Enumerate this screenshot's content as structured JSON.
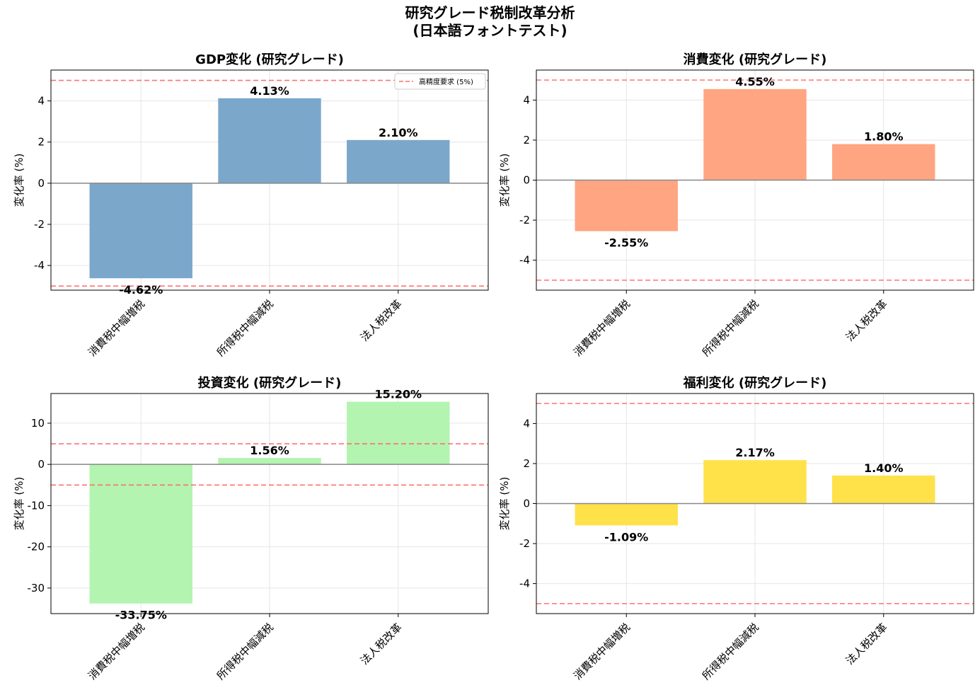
{
  "suptitle": {
    "line1": "研究グレード税制改革分析",
    "line2": "(日本語フォントテスト)"
  },
  "reference_lines": {
    "values": [
      5,
      -5
    ],
    "color": "#ff6b6b",
    "label": "高精度要求 (5%)"
  },
  "zero_line_color": "#888888",
  "chart_data": [
    {
      "type": "bar",
      "title": "GDP変化 (研究グレード)",
      "ylabel": "変化率 (%)",
      "categories": [
        "消費税中幅増税",
        "所得税中幅減税",
        "法人税改革"
      ],
      "values": [
        -4.62,
        4.13,
        2.1
      ],
      "value_labels": [
        "-4.62%",
        "4.13%",
        "2.10%"
      ],
      "ylim": [
        -5.2,
        5.5
      ],
      "yticks": [
        -4,
        -2,
        0,
        2,
        4
      ],
      "color": "#7ba7cb",
      "grid": true,
      "legend": {
        "placement": "top-right",
        "entries": [
          "高精度要求 (5%)"
        ]
      }
    },
    {
      "type": "bar",
      "title": "消費変化 (研究グレード)",
      "ylabel": "変化率 (%)",
      "categories": [
        "消費税中幅増税",
        "所得税中幅減税",
        "法人税改革"
      ],
      "values": [
        -2.55,
        4.55,
        1.8
      ],
      "value_labels": [
        "-2.55%",
        "4.55%",
        "1.80%"
      ],
      "ylim": [
        -5.5,
        5.5
      ],
      "yticks": [
        -4,
        -2,
        0,
        2,
        4
      ],
      "color": "#ffa582",
      "grid": true
    },
    {
      "type": "bar",
      "title": "投資変化 (研究グレード)",
      "ylabel": "変化率 (%)",
      "categories": [
        "消費税中幅増税",
        "所得税中幅減税",
        "法人税改革"
      ],
      "values": [
        -33.75,
        1.56,
        15.2
      ],
      "value_labels": [
        "-33.75%",
        "1.56%",
        "15.20%"
      ],
      "ylim": [
        -36.2,
        17.2
      ],
      "yticks": [
        -30,
        -20,
        -10,
        0,
        10
      ],
      "color": "#b2f4b0",
      "grid": true
    },
    {
      "type": "bar",
      "title": "福利変化 (研究グレード)",
      "ylabel": "変化率 (%)",
      "categories": [
        "消費税中幅増税",
        "所得税中幅減税",
        "法人税改革"
      ],
      "values": [
        -1.09,
        2.17,
        1.4
      ],
      "value_labels": [
        "-1.09%",
        "2.17%",
        "1.40%"
      ],
      "ylim": [
        -5.5,
        5.5
      ],
      "yticks": [
        -4,
        -2,
        0,
        2,
        4
      ],
      "color": "#ffe14a",
      "grid": true
    }
  ]
}
